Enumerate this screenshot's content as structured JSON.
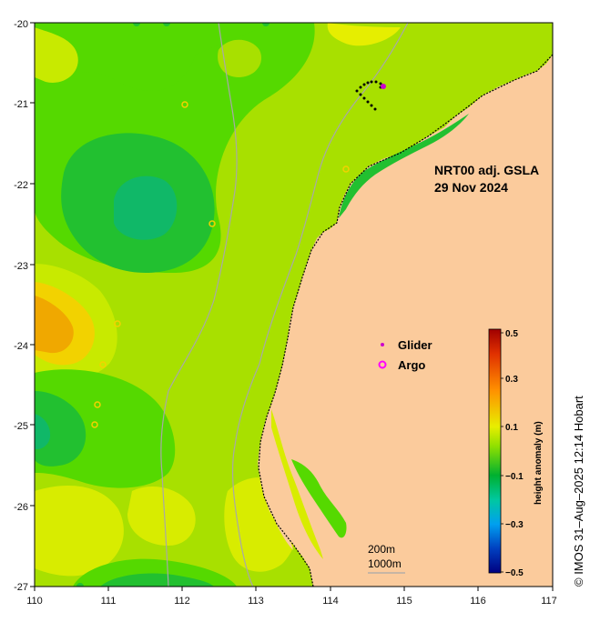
{
  "map": {
    "title_line1": "NRT00 adj. GSLA",
    "title_line2": "29 Nov 2024",
    "x_ticks": [
      "110",
      "111",
      "112",
      "113",
      "114",
      "115",
      "116",
      "117"
    ],
    "y_ticks": [
      "-20",
      "-21",
      "-22",
      "-23",
      "-24",
      "-25",
      "-26",
      "-27"
    ],
    "legend": {
      "glider_label": "Glider",
      "argo_label": "Argo"
    },
    "scale": {
      "label_200m": "200m",
      "label_1000m": "1000m"
    },
    "credit": "© IMOS 31–Aug–2025 12:14 Hobart"
  },
  "colorbar": {
    "label": "height anomaly (m)",
    "ticks": [
      "0.5",
      "0.3",
      "0.1",
      "−0.1",
      "−0.3",
      "−0.5"
    ]
  },
  "colors": {
    "land": "#fbcb9c",
    "ocean_base": "#a8e000",
    "argo": "#ff00ff",
    "glider": "#cc00cc"
  }
}
